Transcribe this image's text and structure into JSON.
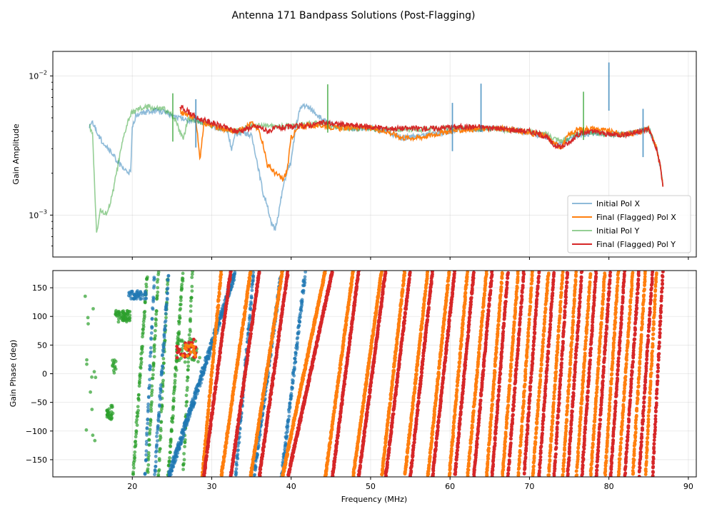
{
  "chart_data": [
    {
      "type": "line",
      "title": "Antenna 171 Bandpass Solutions (Post-Flagging)",
      "xlabel": "",
      "ylabel": "Gain Amplitude",
      "xlim": [
        10,
        91
      ],
      "ylim": [
        0.0005,
        0.015
      ],
      "yscale": "log",
      "yticks": [
        0.001,
        0.01
      ],
      "ytick_labels": [
        "10^-3",
        "10^-2"
      ],
      "xticks": [
        20,
        30,
        40,
        50,
        60,
        70,
        80,
        90
      ],
      "grid": true,
      "legend_position": "lower-right",
      "series": [
        {
          "name": "Initial Pol X",
          "color": "#1f77b4",
          "alpha": 0.5,
          "x": [
            14.6,
            15,
            16,
            17,
            18,
            19,
            19.8,
            20,
            20.5,
            21,
            22,
            23,
            24,
            25,
            26,
            27,
            28,
            29,
            30,
            31,
            32,
            32.5,
            33,
            34,
            35,
            35.5,
            36,
            36.5,
            37,
            37.5,
            38,
            38.5,
            39,
            39.5,
            40,
            40.5,
            41,
            41.5,
            42,
            43,
            44,
            45,
            46,
            48,
            50,
            52,
            54,
            56,
            58,
            60,
            62,
            64,
            66,
            68,
            70,
            72,
            73,
            74,
            75,
            76,
            78,
            80,
            82,
            84,
            85,
            86,
            86.5,
            86.8
          ],
          "y": [
            0.0044,
            0.0046,
            0.0035,
            0.003,
            0.0025,
            0.0021,
            0.002,
            0.0042,
            0.0053,
            0.0054,
            0.0055,
            0.0056,
            0.0055,
            0.0052,
            0.005,
            0.0048,
            0.0048,
            0.0047,
            0.0044,
            0.0042,
            0.004,
            0.003,
            0.0038,
            0.004,
            0.0037,
            0.0028,
            0.002,
            0.0014,
            0.0012,
            0.00085,
            0.0008,
            0.0011,
            0.0016,
            0.0021,
            0.0024,
            0.004,
            0.0055,
            0.0062,
            0.006,
            0.0055,
            0.0048,
            0.0045,
            0.0043,
            0.0042,
            0.0042,
            0.004,
            0.0036,
            0.0037,
            0.0038,
            0.004,
            0.0042,
            0.0041,
            0.0042,
            0.0041,
            0.0039,
            0.0037,
            0.0033,
            0.0032,
            0.0036,
            0.0037,
            0.0039,
            0.0038,
            0.0038,
            0.004,
            0.0042,
            0.003,
            0.0022,
            0.0016
          ]
        },
        {
          "name": "Final (Flagged) Pol X",
          "color": "#ff7f0e",
          "alpha": 1,
          "x": [
            26,
            27,
            28,
            28.5,
            29,
            30,
            31,
            32,
            33,
            34,
            35,
            36,
            36.5,
            37,
            38,
            39,
            39.5,
            40,
            41,
            42,
            44,
            46,
            48,
            50,
            52,
            54,
            56,
            58,
            60,
            62,
            64,
            66,
            68,
            70,
            72,
            73,
            74,
            75,
            76,
            78,
            80,
            82,
            84,
            85,
            86,
            86.5,
            86.8
          ],
          "y": [
            0.0055,
            0.0052,
            0.005,
            0.0025,
            0.0046,
            0.0044,
            0.0042,
            0.0041,
            0.004,
            0.0042,
            0.0046,
            0.004,
            0.0032,
            0.0023,
            0.002,
            0.0018,
            0.0021,
            0.0036,
            0.0043,
            0.0044,
            0.0044,
            0.0042,
            0.0043,
            0.0042,
            0.004,
            0.0036,
            0.0036,
            0.0038,
            0.004,
            0.0041,
            0.0042,
            0.0042,
            0.0041,
            0.0039,
            0.0037,
            0.0033,
            0.0031,
            0.0038,
            0.0041,
            0.0042,
            0.004,
            0.0038,
            0.004,
            0.0042,
            0.003,
            0.0022,
            0.0016
          ]
        },
        {
          "name": "Initial Pol Y",
          "color": "#2ca02c",
          "alpha": 0.5,
          "x": [
            14.6,
            15,
            15.5,
            16,
            16.5,
            17,
            17.5,
            18,
            18.5,
            19,
            19.5,
            20,
            21,
            22,
            23,
            24,
            25,
            25.5,
            26,
            26.5,
            27,
            28,
            29,
            30,
            31,
            32,
            33,
            34,
            35,
            36,
            38,
            40,
            42,
            44,
            45,
            46,
            48,
            50,
            55,
            60,
            65,
            70,
            72,
            74,
            76,
            77,
            78,
            80,
            82,
            84,
            85,
            86,
            86.5,
            86.8
          ],
          "y": [
            0.0044,
            0.0038,
            0.00075,
            0.0011,
            0.001,
            0.0011,
            0.0014,
            0.002,
            0.0028,
            0.0038,
            0.0048,
            0.0055,
            0.0058,
            0.006,
            0.0058,
            0.0058,
            0.0052,
            0.0048,
            0.004,
            0.0036,
            0.005,
            0.0048,
            0.0046,
            0.0044,
            0.0042,
            0.0041,
            0.004,
            0.0042,
            0.0044,
            0.0044,
            0.0043,
            0.0044,
            0.0045,
            0.0046,
            0.0044,
            0.0043,
            0.0042,
            0.0042,
            0.0041,
            0.0042,
            0.0042,
            0.004,
            0.0038,
            0.0034,
            0.0038,
            0.004,
            0.0039,
            0.0038,
            0.0038,
            0.004,
            0.0042,
            0.003,
            0.0022,
            0.0016
          ]
        },
        {
          "name": "Final (Flagged) Pol Y",
          "color": "#d62728",
          "alpha": 1,
          "x": [
            26,
            27,
            28,
            29,
            30,
            31,
            32,
            33,
            34,
            35,
            36,
            37,
            38,
            40,
            42,
            44,
            46,
            48,
            50,
            52,
            54,
            56,
            58,
            60,
            62,
            64,
            66,
            68,
            70,
            72,
            73,
            74,
            75,
            76,
            78,
            80,
            82,
            84,
            85,
            86,
            86.5,
            86.8
          ],
          "y": [
            0.006,
            0.0056,
            0.005,
            0.0048,
            0.0046,
            0.0044,
            0.0042,
            0.004,
            0.0041,
            0.0043,
            0.0043,
            0.004,
            0.0042,
            0.0043,
            0.0044,
            0.0046,
            0.0045,
            0.0044,
            0.0043,
            0.0042,
            0.0042,
            0.0042,
            0.0042,
            0.0043,
            0.0043,
            0.0043,
            0.0042,
            0.0041,
            0.004,
            0.0037,
            0.0032,
            0.0031,
            0.0033,
            0.0038,
            0.004,
            0.0038,
            0.0038,
            0.004,
            0.0042,
            0.003,
            0.0022,
            0.0016
          ]
        }
      ],
      "spikes": [
        {
          "series": "Initial Pol X",
          "x": 28,
          "y": 0.0068
        },
        {
          "series": "Initial Pol X",
          "x": 60.3,
          "y": 0.0064
        },
        {
          "series": "Initial Pol X",
          "x": 63.9,
          "y": 0.0088
        },
        {
          "series": "Initial Pol X",
          "x": 80,
          "y": 0.0125
        },
        {
          "series": "Initial Pol X",
          "x": 84.3,
          "y": 0.0058
        },
        {
          "series": "Initial Pol Y",
          "x": 44.6,
          "y": 0.0087
        },
        {
          "series": "Initial Pol Y",
          "x": 76.8,
          "y": 0.0077
        },
        {
          "series": "Initial Pol Y",
          "x": 25.1,
          "y": 0.0075
        }
      ]
    },
    {
      "type": "scatter",
      "title": "",
      "xlabel": "Frequency (MHz)",
      "ylabel": "Gain Phase (deg)",
      "xlim": [
        10,
        91
      ],
      "ylim": [
        -180,
        180
      ],
      "xticks": [
        20,
        30,
        40,
        50,
        60,
        70,
        80,
        90
      ],
      "yticks": [
        -150,
        -100,
        -50,
        0,
        50,
        100,
        150
      ],
      "grid": true,
      "phase_wraps": {
        "Final (Flagged) Pol X": [
          28.8,
          31.2,
          34.9,
          38.9,
          44.3,
          47.8,
          51.4,
          54.3,
          57.2,
          59.9,
          62.2,
          64.6,
          66.6,
          68.6,
          70.4,
          72.4,
          74.2,
          75.9,
          77.7,
          79.5,
          81.2,
          83.0,
          84.6,
          86.0
        ],
        "Final (Flagged) Pol Y": [
          29.0,
          32.4,
          36.0,
          39.6,
          45.2,
          48.5,
          51.9,
          55.0,
          57.8,
          60.6,
          63.0,
          65.3,
          67.3,
          69.3,
          71.2,
          73.1,
          74.8,
          76.6,
          78.4,
          80.2,
          82.0,
          83.8,
          85.5,
          86.8
        ],
        "Initial Pol X": [
          21.6,
          22.8,
          24.6,
          33.0,
          35.3,
          38.8,
          41.8
        ],
        "Initial Pol Y": [
          20.1,
          21.9,
          23.3,
          24.5,
          26.4,
          27.6
        ]
      }
    }
  ]
}
